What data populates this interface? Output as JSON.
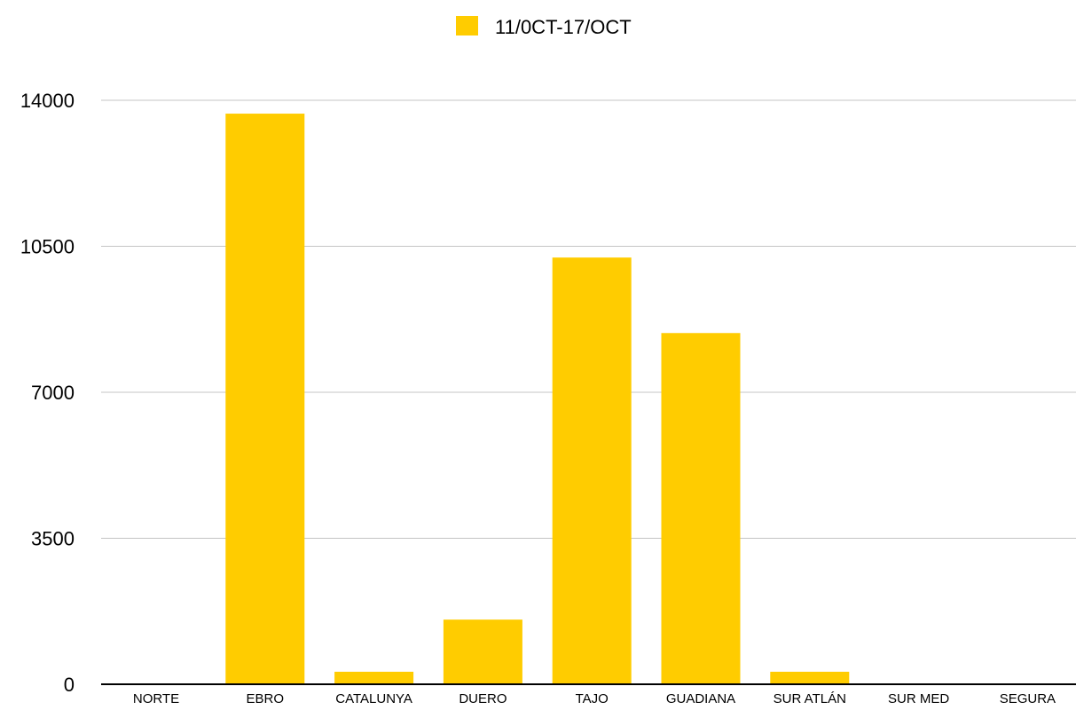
{
  "chart_data": {
    "type": "bar",
    "categories": [
      "NORTE",
      "EBRO",
      "CATALUNYA",
      "DUERO",
      "TAJO",
      "GUADIANA",
      "SUR ATLÁN",
      "SUR MED",
      "SEGURA"
    ],
    "series": [
      {
        "name": "11/0CT-17/OCT",
        "color": "#FFCC00",
        "values": [
          0,
          13680,
          300,
          1550,
          10230,
          8420,
          300,
          0,
          0
        ]
      }
    ],
    "ylim": [
      0,
      14000
    ],
    "yticks": [
      "0",
      "3500",
      "7000",
      "10500",
      "14000"
    ],
    "grid": true,
    "legend_position": "top-center",
    "title": "",
    "xlabel": "",
    "ylabel": ""
  }
}
